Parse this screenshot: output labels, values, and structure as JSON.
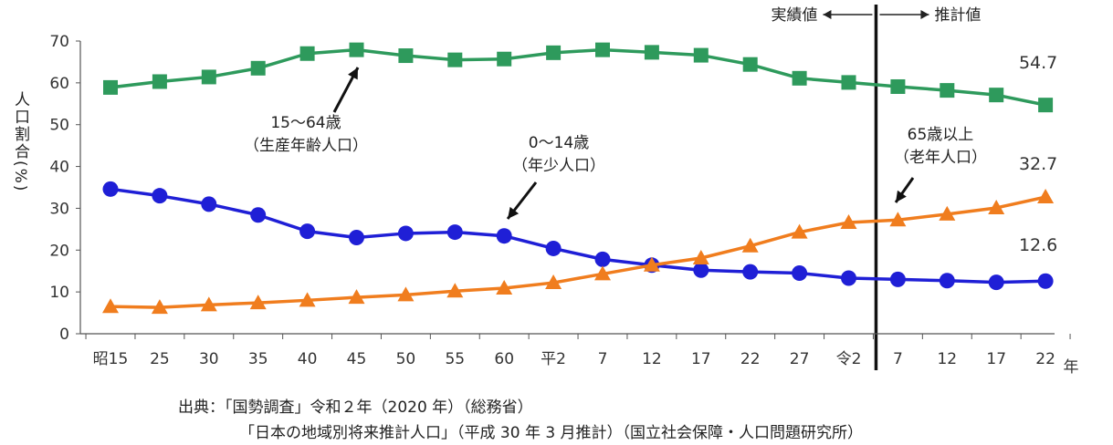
{
  "chart_data": {
    "type": "line",
    "ylabel": "人口割合(%)",
    "ylim": [
      0,
      70
    ],
    "yticks": [
      0,
      10,
      20,
      30,
      40,
      50,
      60,
      70
    ],
    "x_unit": "年",
    "categories": [
      "昭15",
      "25",
      "30",
      "35",
      "40",
      "45",
      "50",
      "55",
      "60",
      "平2",
      "7",
      "12",
      "17",
      "22",
      "27",
      "令2",
      "7",
      "12",
      "17",
      "22"
    ],
    "divider_after_index": 15,
    "period_labels": {
      "actual": "実績値",
      "projected": "推計値"
    },
    "series": [
      {
        "key": "working",
        "name": "15～64歳",
        "subname": "（生産年齢人口）",
        "color": "#2e9a5c",
        "marker": "square",
        "values": [
          58.9,
          60.3,
          61.4,
          63.5,
          67.0,
          67.9,
          66.5,
          65.5,
          65.7,
          67.2,
          67.9,
          67.3,
          66.6,
          64.4,
          61.1,
          60.1,
          59.1,
          58.2,
          57.1,
          54.7
        ],
        "end_label": "54.7"
      },
      {
        "key": "young",
        "name": "0～14歳",
        "subname": "（年少人口）",
        "color": "#1f1fd6",
        "marker": "circle",
        "values": [
          34.6,
          33.0,
          31.0,
          28.4,
          24.5,
          23.0,
          24.0,
          24.3,
          23.4,
          20.4,
          17.8,
          16.4,
          15.2,
          14.8,
          14.5,
          13.3,
          13.0,
          12.7,
          12.3,
          12.6
        ],
        "end_label": "12.6"
      },
      {
        "key": "elderly",
        "name": "65歳以上",
        "subname": "（老年人口）",
        "color": "#f07d1e",
        "marker": "triangle",
        "values": [
          6.5,
          6.3,
          6.9,
          7.4,
          8.0,
          8.7,
          9.3,
          10.2,
          10.9,
          12.2,
          14.3,
          16.4,
          18.1,
          21.0,
          24.3,
          26.6,
          27.2,
          28.6,
          30.1,
          32.7
        ],
        "end_label": "32.7"
      }
    ],
    "annotations": {
      "working": [
        "15～64歳",
        "（生産年齢人口）"
      ],
      "young": [
        "0～14歳",
        "（年少人口）"
      ],
      "elderly": [
        "65歳以上",
        "（老年人口）"
      ]
    }
  },
  "source": {
    "line1": "出典：「国勢調査」令和２年（2020 年）（総務省）",
    "line2": "「日本の地域別将来推計人口」（平成 30 年 3 月推計）（国立社会保障・人口問題研究所）"
  }
}
